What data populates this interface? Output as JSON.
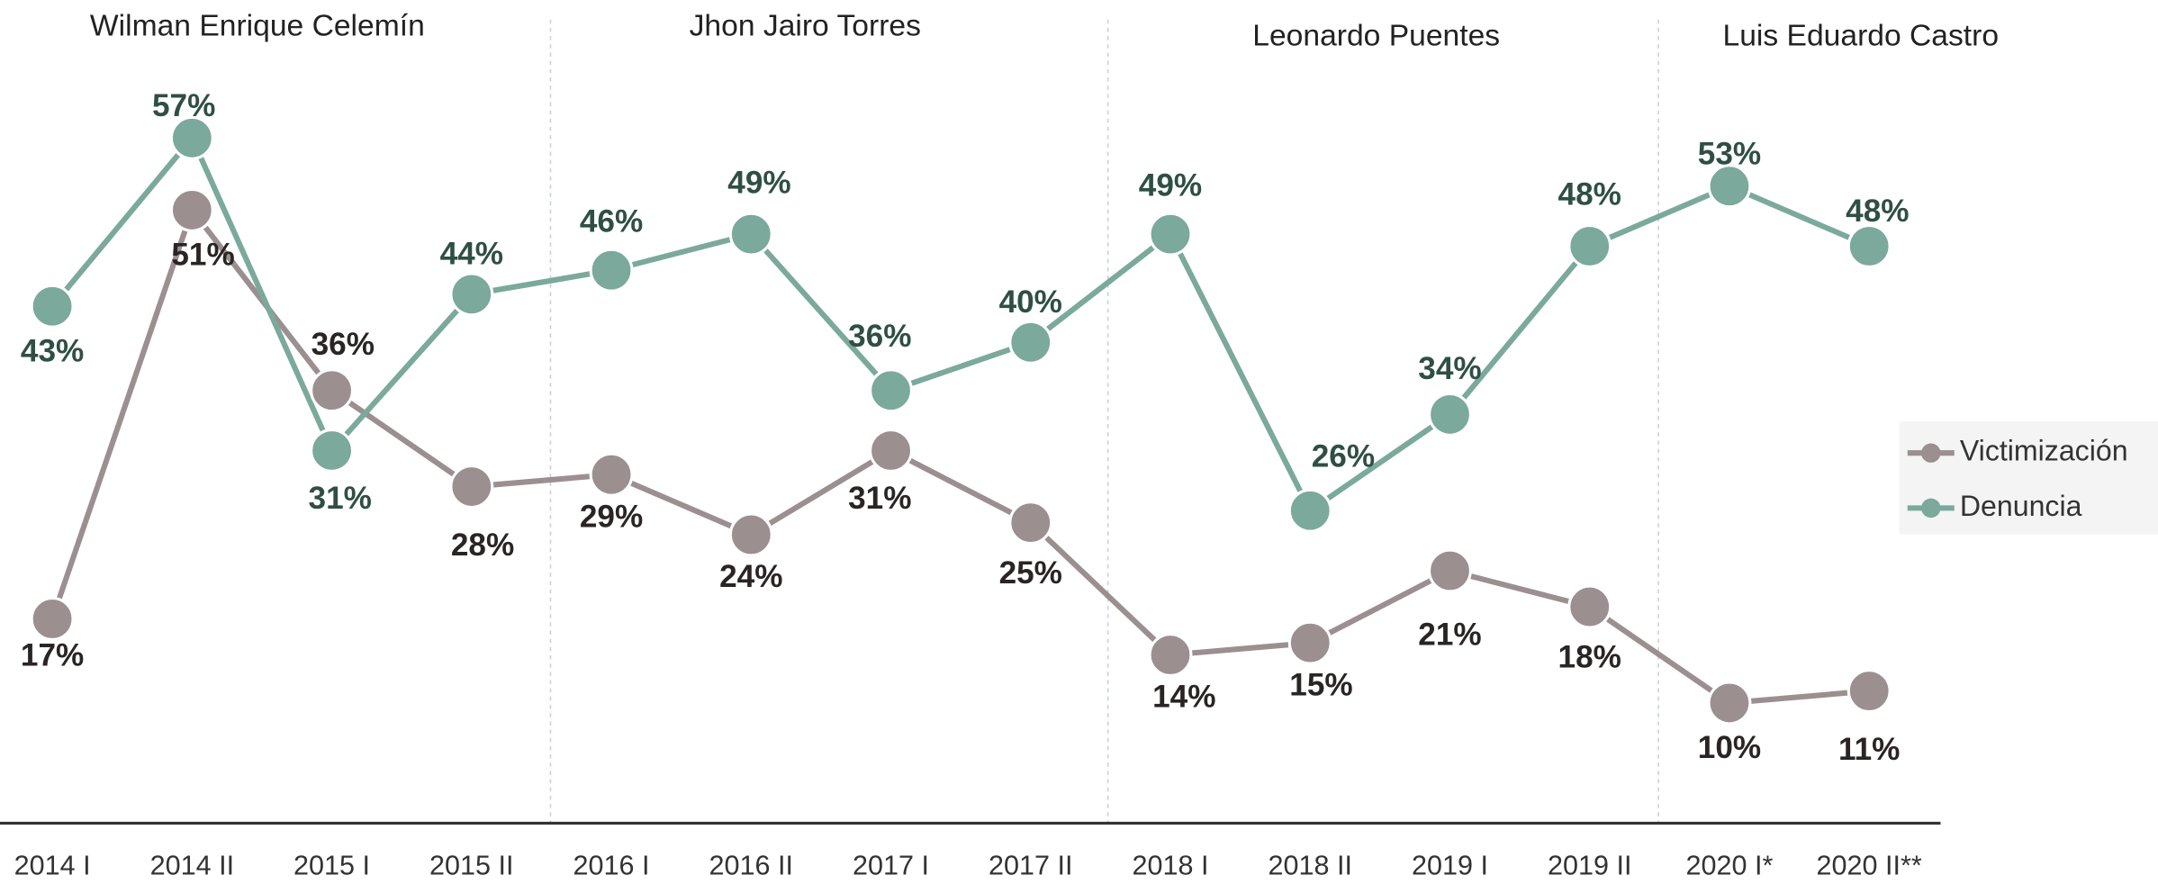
{
  "chart_data": {
    "type": "line",
    "annotations": [
      "Wilman Enrique Celemín",
      "Jhon Jairo Torres",
      "Leonardo Puentes",
      "Luis Eduardo Castro"
    ],
    "categories": [
      "2014 I",
      "2014 II",
      "2015 I",
      "2015 II",
      "2016 I",
      "2016 II",
      "2017 I",
      "2017 II",
      "2018 I",
      "2018 II",
      "2019 I",
      "2019 II",
      "2020 I*",
      "2020 II**"
    ],
    "series": [
      {
        "name": "Victimización",
        "color": "#9b8f8f",
        "label_color": "#2b2424",
        "values": [
          17,
          51,
          36,
          28,
          29,
          24,
          31,
          25,
          14,
          15,
          21,
          18,
          10,
          11
        ],
        "value_labels": [
          "17%",
          "51%",
          "36%",
          "28%",
          "29%",
          "24%",
          "31%",
          "25%",
          "14%",
          "15%",
          "21%",
          "18%",
          "10%",
          "11%"
        ]
      },
      {
        "name": "Denuncia",
        "color": "#7ba99c",
        "label_color": "#2f4f44",
        "values": [
          43,
          57,
          31,
          44,
          46,
          49,
          36,
          40,
          49,
          26,
          34,
          48,
          53,
          48
        ],
        "value_labels": [
          "43%",
          "57%",
          "31%",
          "44%",
          "46%",
          "49%",
          "36%",
          "40%",
          "49%",
          "26%",
          "34%",
          "48%",
          "53%",
          "48%"
        ]
      }
    ],
    "ylim": [
      0,
      68
    ],
    "legend": "right"
  }
}
